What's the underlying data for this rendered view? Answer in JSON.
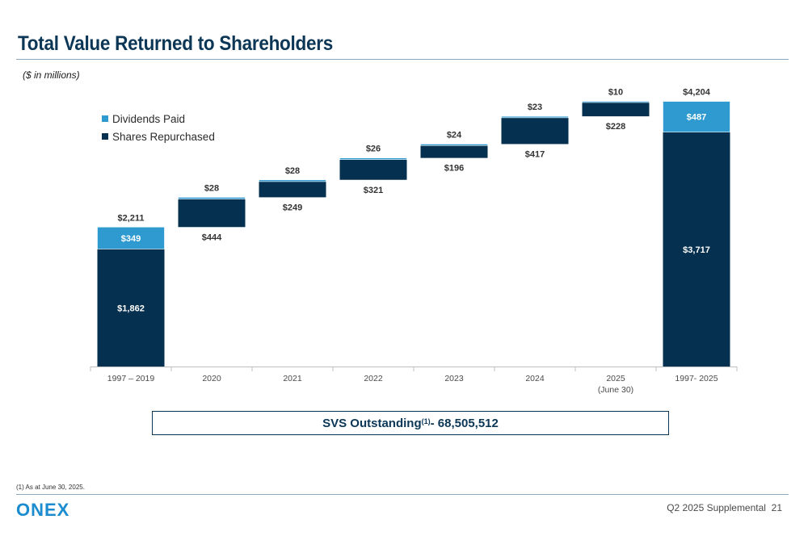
{
  "title": "Total Value Returned to Shareholders",
  "subtitle": "($ in millions)",
  "colors": {
    "title": "#0b3655",
    "dividends": "#2e9ad0",
    "repurchased": "#06304f",
    "axis": "#bfbfbf"
  },
  "chart_data": {
    "type": "bar",
    "subtype": "waterfall-stacked",
    "categories": [
      "1997 – 2019",
      "2020",
      "2021",
      "2022",
      "2023",
      "2024",
      "2025\n(June 30)",
      "1997- 2025"
    ],
    "tick_lines": [
      [
        "1997 – 2019"
      ],
      [
        "2020"
      ],
      [
        "2021"
      ],
      [
        "2022"
      ],
      [
        "2023"
      ],
      [
        "2024"
      ],
      [
        "2025",
        "(June 30)"
      ],
      [
        "1997- 2025"
      ]
    ],
    "series": [
      {
        "name": "Dividends Paid",
        "values": [
          349,
          28,
          28,
          26,
          24,
          23,
          10,
          487
        ]
      },
      {
        "name": "Shares Repurchased",
        "values": [
          1862,
          444,
          249,
          321,
          196,
          417,
          228,
          3717
        ]
      }
    ],
    "totals": [
      2211,
      472,
      277,
      347,
      220,
      440,
      238,
      4204
    ],
    "labels": {
      "dividends": [
        "$349",
        "$28",
        "$28",
        "$26",
        "$24",
        "$23",
        "$10",
        "$487"
      ],
      "repurchased": [
        "$1,862",
        "$444",
        "$249",
        "$321",
        "$196",
        "$417",
        "$228",
        "$3,717"
      ],
      "totals": [
        "$2,211",
        "",
        "",
        "",
        "",
        "",
        "",
        "$4,204"
      ]
    },
    "ylim": [
      0,
      4800
    ],
    "legend_position": "top-left",
    "grid": false
  },
  "svs": {
    "text": "SVS Outstanding",
    "sup": "(1)",
    "value": " - 68,505,512"
  },
  "footnote": "(1) As at June 30, 2025.",
  "logo_text": "ONEX",
  "page_label": "Q2 2025 Supplemental",
  "page_number": "21"
}
